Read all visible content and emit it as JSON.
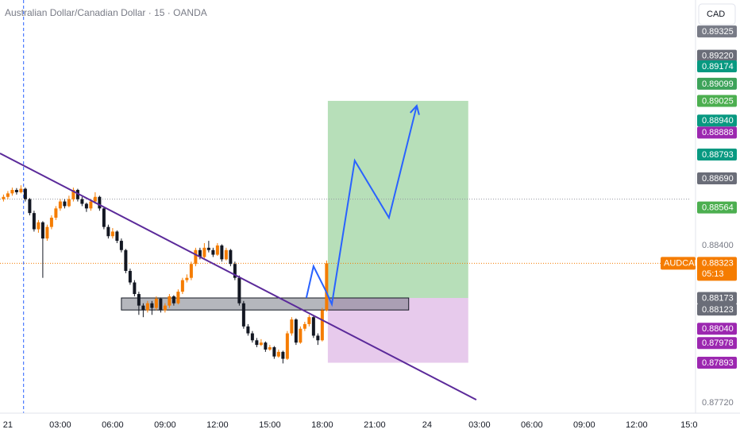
{
  "chart_data": {
    "type": "candlestick",
    "title": "Australian Dollar/Canadian Dollar · 15 · OANDA",
    "currency_button": "CAD",
    "up_color": "#f57c00",
    "down_color": "#131722",
    "x": [
      -0.25,
      0,
      0.25,
      0.5,
      0.75,
      1,
      1.25,
      1.5,
      1.75,
      2,
      2.25,
      2.5,
      2.75,
      3,
      3.25,
      3.5,
      3.75,
      4,
      4.25,
      4.5,
      4.75,
      5,
      5.25,
      5.5,
      5.75,
      6,
      6.25,
      6.5,
      6.75,
      7,
      7.25,
      7.5,
      7.75,
      8,
      8.25,
      8.5,
      8.75,
      9,
      9.25,
      9.5,
      9.75,
      10,
      10.25,
      10.5,
      10.75,
      11,
      11.25,
      11.5,
      11.75,
      12,
      12.25,
      12.5,
      12.75,
      13,
      13.25,
      13.5,
      13.75,
      14,
      14.25,
      14.5,
      14.75,
      15,
      15.25,
      15.5,
      15.75,
      16,
      16.25,
      16.5,
      16.75,
      17,
      17.25,
      17.5,
      17.75,
      18,
      18.25
    ],
    "candles": [
      [
        0.886,
        0.8862,
        0.8859,
        0.8861
      ],
      [
        0.8861,
        0.88635,
        0.886,
        0.88625
      ],
      [
        0.88625,
        0.8865,
        0.88615,
        0.8864
      ],
      [
        0.8864,
        0.88648,
        0.8862,
        0.8863
      ],
      [
        0.8863,
        0.8866,
        0.88625,
        0.88645
      ],
      [
        0.88645,
        0.8865,
        0.8859,
        0.886
      ],
      [
        0.886,
        0.88605,
        0.8853,
        0.8854
      ],
      [
        0.8854,
        0.8855,
        0.8846,
        0.8847
      ],
      [
        0.8847,
        0.8851,
        0.88455,
        0.885
      ],
      [
        0.885,
        0.88505,
        0.8826,
        0.8843
      ],
      [
        0.8843,
        0.8849,
        0.8842,
        0.8848
      ],
      [
        0.8848,
        0.8853,
        0.8847,
        0.8852
      ],
      [
        0.8852,
        0.8857,
        0.8851,
        0.8856
      ],
      [
        0.8856,
        0.886,
        0.8855,
        0.8859
      ],
      [
        0.8859,
        0.886,
        0.8856,
        0.8857
      ],
      [
        0.8857,
        0.88615,
        0.88565,
        0.886
      ],
      [
        0.886,
        0.8865,
        0.8859,
        0.8864
      ],
      [
        0.8864,
        0.88645,
        0.8859,
        0.886
      ],
      [
        0.886,
        0.8861,
        0.8857,
        0.8858
      ],
      [
        0.8858,
        0.88585,
        0.88545,
        0.8856
      ],
      [
        0.8856,
        0.886,
        0.8855,
        0.8859
      ],
      [
        0.8859,
        0.8863,
        0.8858,
        0.8861
      ],
      [
        0.8861,
        0.88615,
        0.8855,
        0.8856
      ],
      [
        0.8856,
        0.88565,
        0.8847,
        0.8848
      ],
      [
        0.8848,
        0.8849,
        0.8843,
        0.8844
      ],
      [
        0.8844,
        0.88475,
        0.8843,
        0.8846
      ],
      [
        0.8846,
        0.88465,
        0.8841,
        0.8842
      ],
      [
        0.8842,
        0.8843,
        0.8837,
        0.8838
      ],
      [
        0.8838,
        0.88385,
        0.8828,
        0.8829
      ],
      [
        0.8829,
        0.883,
        0.8823,
        0.8824
      ],
      [
        0.8824,
        0.8825,
        0.8818,
        0.8819
      ],
      [
        0.8819,
        0.882,
        0.881,
        0.8814
      ],
      [
        0.8814,
        0.8815,
        0.8809,
        0.8812
      ],
      [
        0.8812,
        0.8816,
        0.8811,
        0.8815
      ],
      [
        0.8815,
        0.8816,
        0.881,
        0.8813
      ],
      [
        0.8813,
        0.8818,
        0.8812,
        0.8817
      ],
      [
        0.8817,
        0.88175,
        0.8811,
        0.8812
      ],
      [
        0.8812,
        0.8815,
        0.8811,
        0.8814
      ],
      [
        0.8814,
        0.8819,
        0.8813,
        0.8818
      ],
      [
        0.8818,
        0.88185,
        0.8814,
        0.8815
      ],
      [
        0.8815,
        0.8821,
        0.88145,
        0.882
      ],
      [
        0.882,
        0.8826,
        0.8819,
        0.8825
      ],
      [
        0.8825,
        0.88275,
        0.8824,
        0.8826
      ],
      [
        0.8826,
        0.8833,
        0.8825,
        0.8832
      ],
      [
        0.8832,
        0.8839,
        0.8831,
        0.8838
      ],
      [
        0.8838,
        0.8839,
        0.8834,
        0.8835
      ],
      [
        0.8835,
        0.8841,
        0.88345,
        0.8839
      ],
      [
        0.8839,
        0.8842,
        0.8837,
        0.8838
      ],
      [
        0.8838,
        0.8839,
        0.8835,
        0.8836
      ],
      [
        0.8836,
        0.8841,
        0.88355,
        0.884
      ],
      [
        0.884,
        0.88405,
        0.8833,
        0.8834
      ],
      [
        0.8834,
        0.8839,
        0.88335,
        0.8838
      ],
      [
        0.8838,
        0.88385,
        0.8831,
        0.8832
      ],
      [
        0.8832,
        0.8833,
        0.8825,
        0.8826
      ],
      [
        0.8826,
        0.8827,
        0.8814,
        0.8815
      ],
      [
        0.8815,
        0.8816,
        0.8804,
        0.8805
      ],
      [
        0.8805,
        0.8806,
        0.8801,
        0.8802
      ],
      [
        0.8802,
        0.8803,
        0.8798,
        0.8799
      ],
      [
        0.8799,
        0.88,
        0.8796,
        0.8797
      ],
      [
        0.8797,
        0.87995,
        0.87965,
        0.8798
      ],
      [
        0.8798,
        0.87985,
        0.8794,
        0.8795
      ],
      [
        0.8795,
        0.8797,
        0.87945,
        0.8796
      ],
      [
        0.8796,
        0.87965,
        0.8791,
        0.8792
      ],
      [
        0.8792,
        0.8795,
        0.87915,
        0.8794
      ],
      [
        0.8794,
        0.87945,
        0.8789,
        0.8791
      ],
      [
        0.8791,
        0.8803,
        0.87905,
        0.8802
      ],
      [
        0.8802,
        0.8809,
        0.8801,
        0.8808
      ],
      [
        0.8808,
        0.88085,
        0.8797,
        0.8798
      ],
      [
        0.8798,
        0.8805,
        0.87975,
        0.8804
      ],
      [
        0.8804,
        0.8807,
        0.8803,
        0.8806
      ],
      [
        0.8806,
        0.881,
        0.8805,
        0.8809
      ],
      [
        0.8809,
        0.88095,
        0.88,
        0.8801
      ],
      [
        0.8801,
        0.8802,
        0.8797,
        0.8799
      ],
      [
        0.8799,
        0.8813,
        0.87985,
        0.8812
      ],
      [
        0.8812,
        0.88335,
        0.88115,
        0.88323
      ]
    ],
    "xlim": [
      -0.45,
      39.1
    ],
    "ylim": [
      0.87675,
      0.89461
    ],
    "xticks": [
      {
        "value": 0,
        "label": "21"
      },
      {
        "value": 3,
        "label": "03:00"
      },
      {
        "value": 6,
        "label": "06:00"
      },
      {
        "value": 9,
        "label": "09:00"
      },
      {
        "value": 12,
        "label": "12:00"
      },
      {
        "value": 15,
        "label": "15:00"
      },
      {
        "value": 18,
        "label": "18:00"
      },
      {
        "value": 21,
        "label": "21:00"
      },
      24,
      {
        "value": 27,
        "label": "03:00"
      },
      {
        "value": 30,
        "label": "06:00"
      },
      {
        "value": 33,
        "label": "09:00"
      },
      {
        "value": 36,
        "label": "12:00"
      },
      {
        "value": 39,
        "label": "15:0"
      }
    ],
    "yticks": [
      {
        "value": 0.884,
        "label": "0.88400"
      },
      {
        "value": 0.8772,
        "label": "0.87720"
      }
    ],
    "reference_line": 0.886,
    "session_break_x": 0.9,
    "trendline": {
      "x": [
        -0.45,
        26.82
      ],
      "y": [
        0.88798,
        0.87733
      ],
      "color": "#5b2a9a"
    },
    "support_zone": {
      "x": [
        6.5,
        22.95
      ],
      "y": [
        0.88173,
        0.88121
      ]
    },
    "position": {
      "x": [
        18.32,
        26.36
      ],
      "entry": 0.88173,
      "target": 0.89025,
      "stop": 0.87893
    },
    "projection": {
      "x": [
        17.09,
        17.5,
        18.18,
        18.55,
        19.86,
        21.82,
        23.41
      ],
      "y": [
        0.88173,
        0.8831,
        0.88207,
        0.88146,
        0.88767,
        0.8852,
        0.89004
      ],
      "color": "#2962ff"
    },
    "current": {
      "name": "AUDCAD",
      "value": 0.88323,
      "label": "0.88323",
      "countdown": "05:13"
    },
    "price_tags": [
      {
        "value": 0.89325,
        "label": "0.89325",
        "color": "#787b86"
      },
      {
        "value": 0.8922,
        "label": "0.89220",
        "color": "#6a6d78"
      },
      {
        "value": 0.89174,
        "label": "0.89174",
        "color": "#089981"
      },
      {
        "value": 0.89099,
        "label": "0.89099",
        "color": "#3da35a"
      },
      {
        "value": 0.89025,
        "label": "0.89025",
        "color": "#4caf50"
      },
      {
        "value": 0.8894,
        "label": "0.88940",
        "color": "#089981"
      },
      {
        "value": 0.88888,
        "label": "0.88888",
        "color": "#9c27b0"
      },
      {
        "value": 0.88793,
        "label": "0.88793",
        "color": "#089981"
      },
      {
        "value": 0.8869,
        "label": "0.88690",
        "color": "#6a6d78"
      },
      {
        "value": 0.88564,
        "label": "0.88564",
        "color": "#4caf50"
      },
      {
        "value": 0.88173,
        "label": "0.88173",
        "color": "#6a6d78"
      },
      {
        "value": 0.88123,
        "label": "0.88123",
        "color": "#6a6d78"
      },
      {
        "value": 0.8804,
        "label": "0.88040",
        "color": "#9c27b0"
      },
      {
        "value": 0.87978,
        "label": "0.87978",
        "color": "#9c27b0"
      },
      {
        "value": 0.87893,
        "label": "0.87893",
        "color": "#9c27b0"
      }
    ]
  }
}
